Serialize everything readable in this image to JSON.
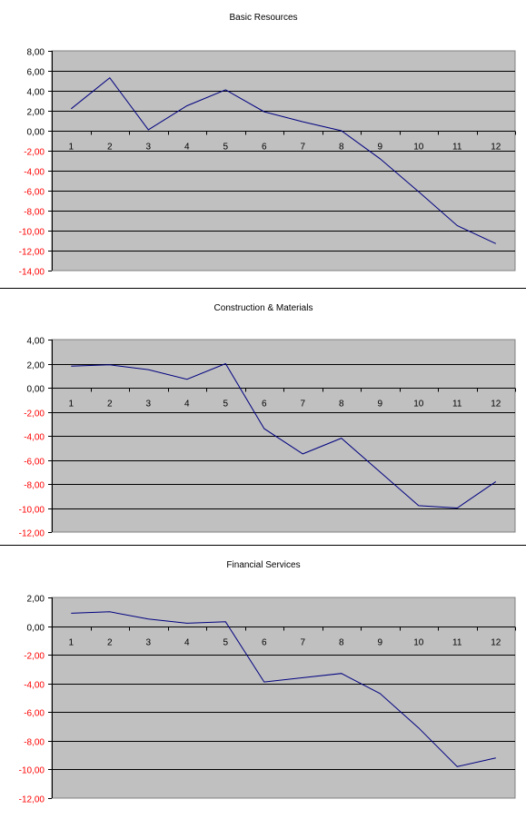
{
  "chart_data": [
    {
      "type": "line",
      "title": "Basic Resources",
      "xlabel": "",
      "ylabel": "",
      "categories": [
        "1",
        "2",
        "3",
        "4",
        "5",
        "6",
        "7",
        "8",
        "9",
        "10",
        "11",
        "12"
      ],
      "values": [
        2.2,
        5.3,
        0.1,
        2.5,
        4.1,
        1.9,
        0.9,
        0.0,
        -2.8,
        -6.1,
        -9.5,
        -11.3
      ],
      "ylim": [
        -14,
        8
      ],
      "ytick_step": 2,
      "yticks": [
        "8,00",
        "6,00",
        "4,00",
        "2,00",
        "0,00",
        "-2,00",
        "-4,00",
        "-6,00",
        "-8,00",
        "-10,00",
        "-12,00",
        "-14,00"
      ],
      "grid": true,
      "colors": {
        "plot_bg": "#c0c0c0",
        "line": "#000080",
        "grid": "#000000",
        "negative_tick": "#ff0000"
      }
    },
    {
      "type": "line",
      "title": "Construction & Materials",
      "xlabel": "",
      "ylabel": "",
      "categories": [
        "1",
        "2",
        "3",
        "4",
        "5",
        "6",
        "7",
        "8",
        "9",
        "10",
        "11",
        "12"
      ],
      "values": [
        1.8,
        1.9,
        1.5,
        0.7,
        2.0,
        -3.4,
        -5.5,
        -4.2,
        -7.0,
        -9.8,
        -10.0,
        -7.8
      ],
      "ylim": [
        -12,
        4
      ],
      "ytick_step": 2,
      "yticks": [
        "4,00",
        "2,00",
        "0,00",
        "-2,00",
        "-4,00",
        "-6,00",
        "-8,00",
        "-10,00",
        "-12,00"
      ],
      "grid": true,
      "colors": {
        "plot_bg": "#c0c0c0",
        "line": "#000080",
        "grid": "#000000",
        "negative_tick": "#ff0000"
      }
    },
    {
      "type": "line",
      "title": "Financial Services",
      "xlabel": "",
      "ylabel": "",
      "categories": [
        "1",
        "2",
        "3",
        "4",
        "5",
        "6",
        "7",
        "8",
        "9",
        "10",
        "11",
        "12"
      ],
      "values": [
        0.9,
        1.0,
        0.5,
        0.2,
        0.3,
        -3.9,
        -3.6,
        -3.3,
        -4.7,
        -7.1,
        -9.8,
        -9.2
      ],
      "ylim": [
        -12,
        2
      ],
      "ytick_step": 2,
      "yticks": [
        "2,00",
        "0,00",
        "-2,00",
        "-4,00",
        "-6,00",
        "-8,00",
        "-10,00",
        "-12,00"
      ],
      "grid": true,
      "colors": {
        "plot_bg": "#c0c0c0",
        "line": "#000080",
        "grid": "#000000",
        "negative_tick": "#ff0000"
      }
    }
  ]
}
